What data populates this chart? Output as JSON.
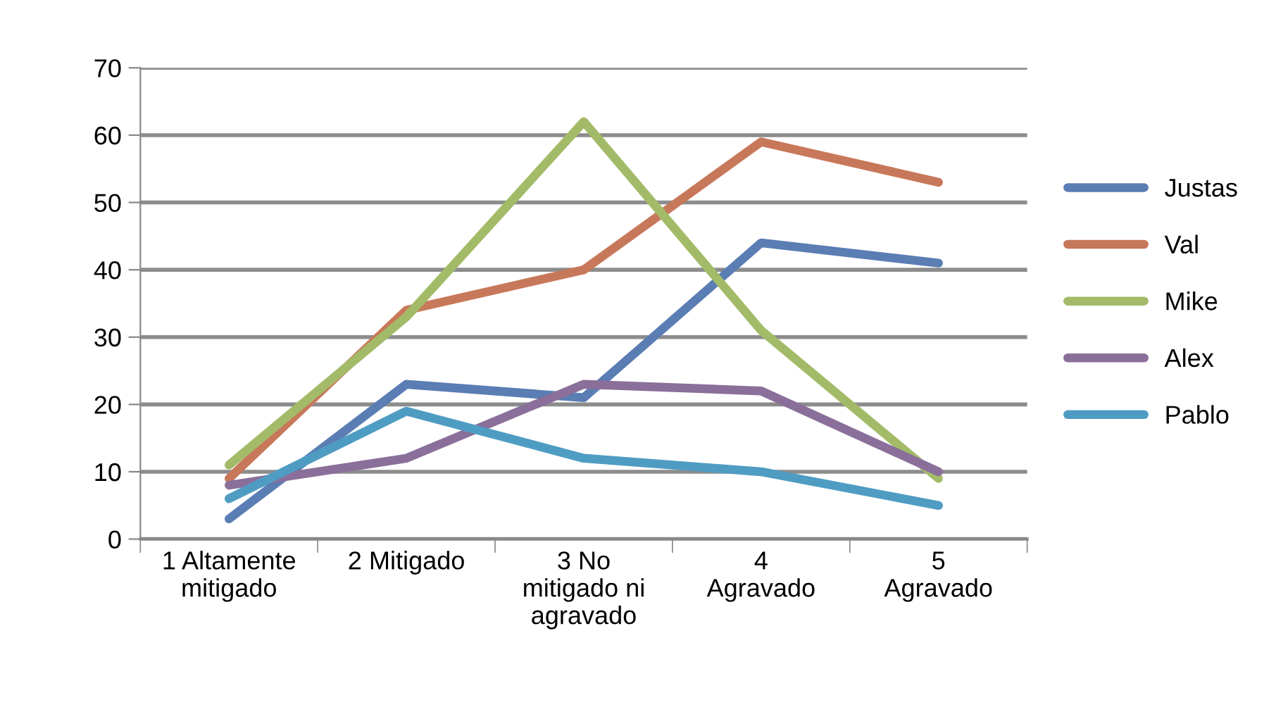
{
  "chart_data": {
    "type": "line",
    "categories": [
      "1 Altamente\nmitigado",
      "2 Mitigado",
      "3 No\nmitigado ni\nagravado",
      "4\nAgravado",
      "5\nAgravado"
    ],
    "series": [
      {
        "name": "Justas",
        "color": "#5a7db3",
        "values": [
          3,
          23,
          21,
          44,
          41
        ]
      },
      {
        "name": "Val",
        "color": "#c8785a",
        "values": [
          9,
          34,
          40,
          59,
          53
        ]
      },
      {
        "name": "Mike",
        "color": "#a3bb68",
        "values": [
          11,
          33,
          62,
          31,
          9
        ]
      },
      {
        "name": "Alex",
        "color": "#8a6f9a",
        "values": [
          8,
          12,
          23,
          22,
          10
        ]
      },
      {
        "name": "Pablo",
        "color": "#4f9cc3",
        "values": [
          6,
          19,
          12,
          10,
          5
        ]
      }
    ],
    "ylim": [
      0,
      70
    ],
    "yticks": [
      0,
      10,
      20,
      30,
      40,
      50,
      60,
      70
    ],
    "grid": "y",
    "legend": "right",
    "marker": "none",
    "line_style": "solid"
  }
}
